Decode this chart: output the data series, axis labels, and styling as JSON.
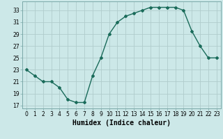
{
  "x": [
    0,
    1,
    2,
    3,
    4,
    5,
    6,
    7,
    8,
    9,
    10,
    11,
    12,
    13,
    14,
    15,
    16,
    17,
    18,
    19,
    20,
    21,
    22,
    23
  ],
  "y": [
    23,
    22,
    21,
    21,
    20,
    18,
    17.5,
    17.5,
    22,
    25,
    29,
    31,
    32,
    32.5,
    33,
    33.5,
    33.5,
    33.5,
    33.5,
    33,
    29.5,
    27,
    25,
    25
  ],
  "line_color": "#1a6b5a",
  "marker": "D",
  "marker_size": 2.0,
  "bg_color": "#cce8e8",
  "grid_color": "#b0cccc",
  "xlim": [
    -0.5,
    23.5
  ],
  "ylim": [
    16.5,
    34.5
  ],
  "yticks": [
    17,
    19,
    21,
    23,
    25,
    27,
    29,
    31,
    33
  ],
  "xticks": [
    0,
    1,
    2,
    3,
    4,
    5,
    6,
    7,
    8,
    9,
    10,
    11,
    12,
    13,
    14,
    15,
    16,
    17,
    18,
    19,
    20,
    21,
    22,
    23
  ],
  "xlabel": "Humidex (Indice chaleur)",
  "xlabel_fontsize": 7,
  "tick_fontsize": 5.5,
  "line_width": 1.0
}
